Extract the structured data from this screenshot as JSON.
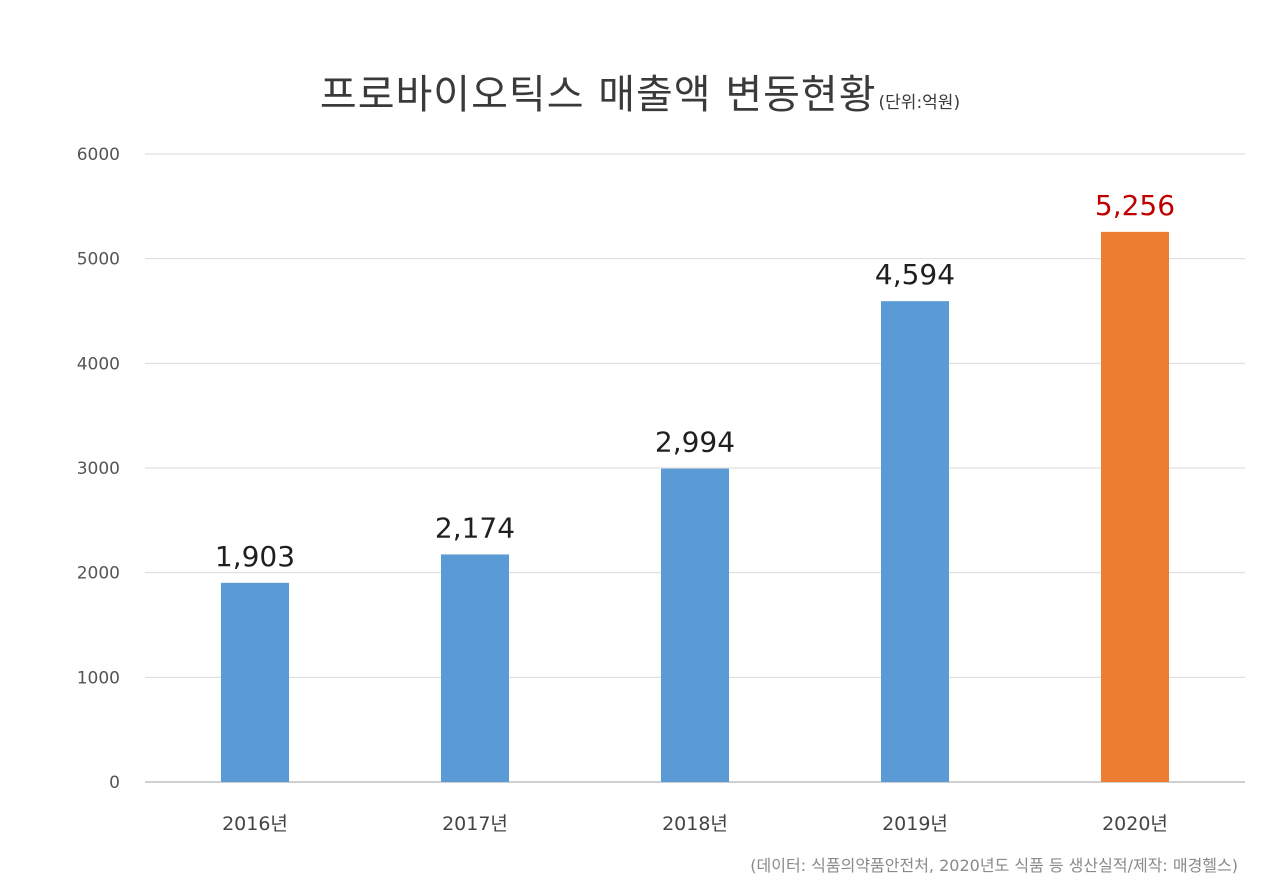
{
  "title": "프로바이오틱스 매출액 변동현황",
  "unit_note": "(단위:억원)",
  "source_note": "(데이터: 식품의약품안전처, 2020년도 식품 등 생산실적/제작: 매경헬스)",
  "colors": {
    "bar_default": "#5b9bd5",
    "bar_highlight": "#ed7d31",
    "label_default": "#1f1f1f",
    "label_highlight": "#c00000",
    "grid": "#d9d9d9",
    "axis": "#bfbfbf"
  },
  "chart_data": {
    "type": "bar",
    "title": "프로바이오틱스 매출액 변동현황",
    "xlabel": "",
    "ylabel": "",
    "categories": [
      "2016년",
      "2017년",
      "2018년",
      "2019년",
      "2020년"
    ],
    "values": [
      1903,
      2174,
      2994,
      4594,
      5256
    ],
    "value_labels": [
      "1,903",
      "2,174",
      "2,994",
      "4,594",
      "5,256"
    ],
    "highlight_index": 4,
    "ylim": [
      0,
      6000
    ],
    "yticks": [
      0,
      1000,
      2000,
      3000,
      4000,
      5000,
      6000
    ],
    "grid": true,
    "legend": "none"
  }
}
